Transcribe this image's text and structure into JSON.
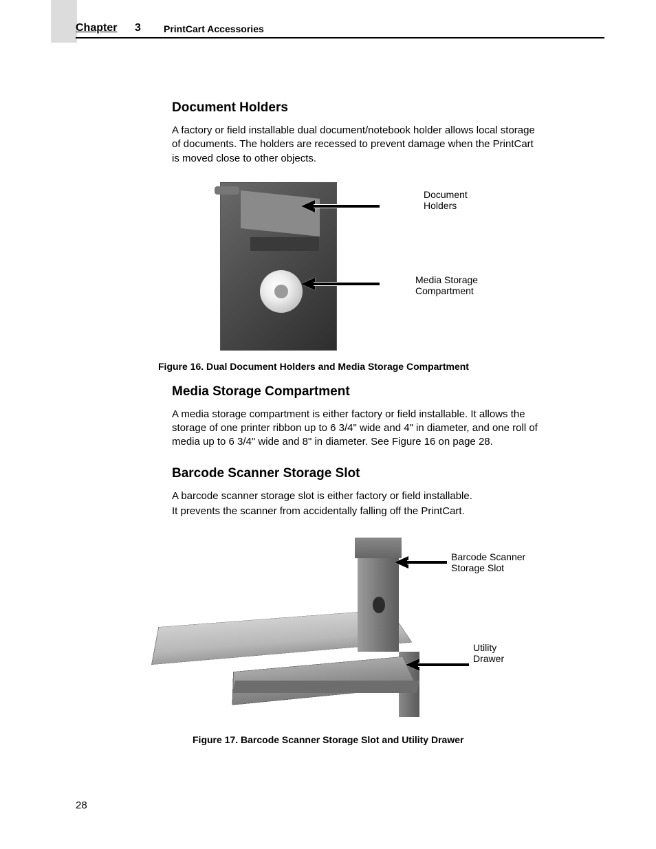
{
  "header": {
    "chapter_label": "Chapter",
    "chapter_number": "3",
    "chapter_subtitle": "PrintCart Accessories"
  },
  "sections": {
    "doc_holders": {
      "title": "Document Holders",
      "body": "A factory or field installable dual document/notebook holder allows local storage of documents. The holders are recessed to prevent damage when the PrintCart is moved close to other objects."
    },
    "media_storage": {
      "title": "Media Storage Compartment",
      "body": "A media storage compartment is either factory or field installable. It allows the storage of one printer ribbon up to 6 3/4\" wide and 4\" in diameter, and one roll of media up to 6 3/4\" wide and 8\" in diameter. See Figure 16 on page 28."
    },
    "barcode_slot": {
      "title": "Barcode Scanner Storage Slot",
      "body_line1": "A barcode scanner storage slot is either factory or field installable.",
      "body_line2": "It prevents the scanner from accidentally falling off the PrintCart."
    }
  },
  "figures": {
    "fig16": {
      "caption": "Figure 16. Dual Document Holders and Media Storage Compartment",
      "callouts": {
        "doc_holders": "Document\nHolders",
        "media_storage": "Media Storage\nCompartment"
      }
    },
    "fig17": {
      "caption": "Figure 17. Barcode Scanner Storage Slot and Utility Drawer",
      "callouts": {
        "scanner_slot": "Barcode Scanner\nStorage Slot",
        "utility_drawer": "Utility\nDrawer"
      }
    }
  },
  "page_number": "28",
  "colors": {
    "text": "#000000",
    "page_bg": "#ffffff",
    "chapter_box_bg": "#dcdcdc",
    "rule": "#000000",
    "photo_dark": "#4d4d4d",
    "photo_mid": "#8a8a8a",
    "metal_light": "#d0d0d0",
    "metal_dark": "#6d6d6d"
  },
  "typography": {
    "heading_fontsize_pt": 14,
    "body_fontsize_pt": 11,
    "caption_fontsize_pt": 10.5,
    "callout_fontsize_pt": 10.5,
    "font_family": "Arial, Helvetica, sans-serif"
  }
}
